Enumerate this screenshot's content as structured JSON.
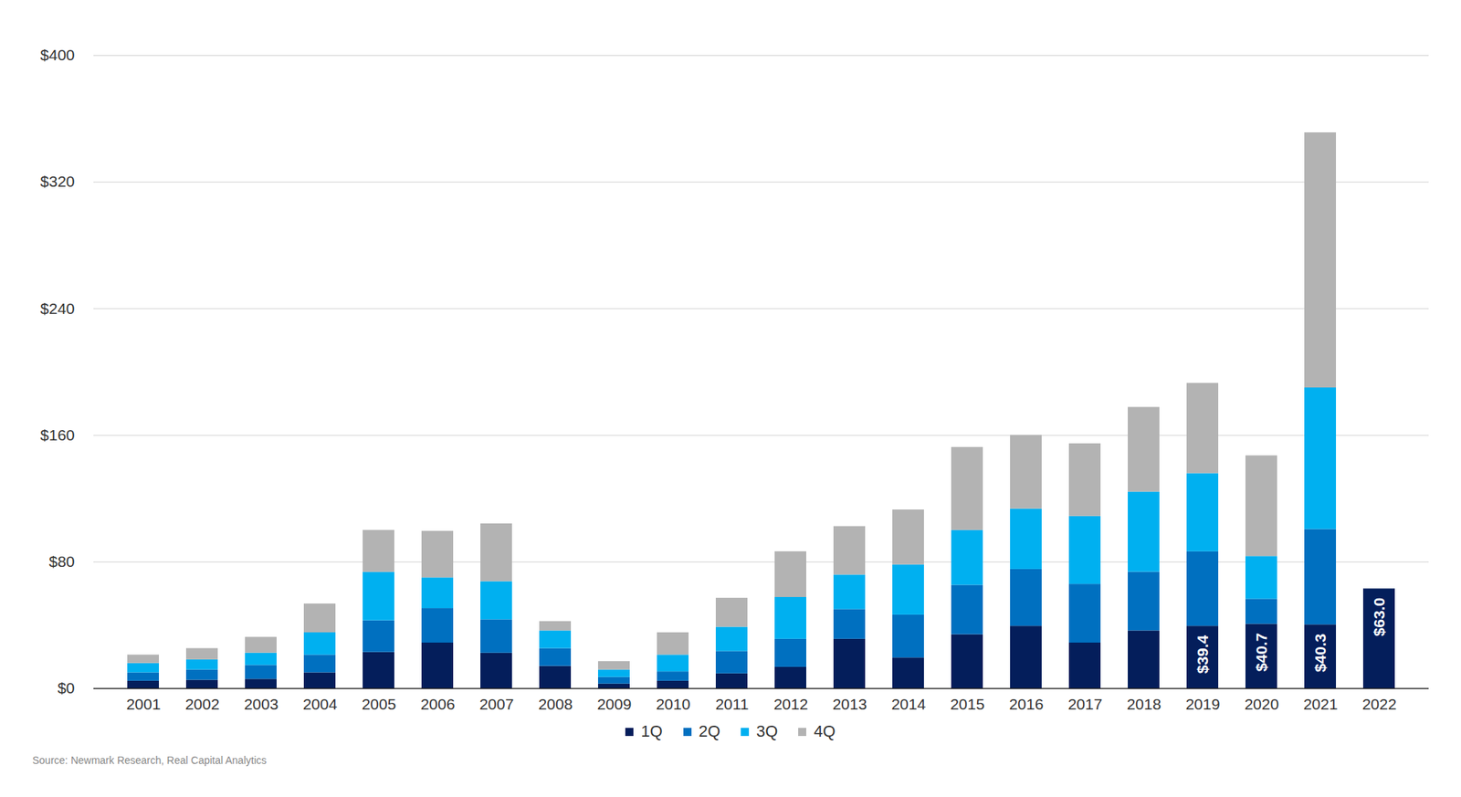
{
  "chart_data": {
    "type": "bar",
    "stacked": true,
    "grid": true,
    "data_labels": true,
    "legend": "bottom",
    "caption": "Source: Newmark Research, Real Capital Analytics",
    "categories": [
      "2001",
      "2002",
      "2003",
      "2004",
      "2005",
      "2006",
      "2007",
      "2008",
      "2009",
      "2010",
      "2011",
      "2012",
      "2013",
      "2014",
      "2015",
      "2016",
      "2017",
      "2018",
      "2019",
      "2020",
      "2021",
      "2022"
    ],
    "ylim": [
      0,
      400
    ],
    "yticks": [
      {
        "value": 0,
        "label": "$0"
      },
      {
        "value": 80,
        "label": "$80"
      },
      {
        "value": 160,
        "label": "$160"
      },
      {
        "value": 240,
        "label": "$240"
      },
      {
        "value": 320,
        "label": "$320"
      },
      {
        "value": 400,
        "label": "$400"
      }
    ],
    "series": [
      {
        "name": "1Q",
        "color": "#041e5b",
        "values": [
          4.7,
          5.3,
          5.9,
          10.0,
          22.9,
          28.8,
          22.4,
          14.1,
          2.9,
          4.7,
          9.4,
          13.5,
          31.2,
          19.4,
          34.1,
          39.4,
          28.8,
          36.5,
          39.4,
          40.7,
          40.3,
          63.0
        ],
        "value_labels": [
          null,
          null,
          null,
          null,
          null,
          null,
          null,
          null,
          null,
          null,
          null,
          null,
          null,
          null,
          null,
          null,
          null,
          null,
          "$39.4",
          "$40.7",
          "$40.3",
          "$63.0"
        ]
      },
      {
        "name": "2Q",
        "color": "#0070c0",
        "values": [
          5.3,
          6.5,
          8.8,
          11.2,
          20.0,
          21.8,
          21.1,
          11.2,
          4.2,
          5.9,
          14.1,
          17.7,
          18.8,
          27.1,
          31.2,
          35.9,
          37.1,
          37.1,
          47.1,
          15.8,
          60.3,
          null
        ]
      },
      {
        "name": "3Q",
        "color": "#00b0f0",
        "values": [
          5.9,
          6.4,
          7.7,
          14.1,
          30.6,
          19.4,
          24.1,
          11.2,
          4.7,
          10.6,
          15.3,
          26.4,
          21.8,
          31.7,
          34.7,
          38.2,
          42.9,
          50.6,
          49.4,
          27.0,
          89.4,
          null
        ]
      },
      {
        "name": "4Q",
        "color": "#b3b3b3",
        "values": [
          5.3,
          7.1,
          10.0,
          18.2,
          26.5,
          29.4,
          36.5,
          5.9,
          5.3,
          14.1,
          18.3,
          28.9,
          30.6,
          34.7,
          52.4,
          46.5,
          45.9,
          53.5,
          57.0,
          63.6,
          161.2,
          null
        ]
      }
    ]
  }
}
